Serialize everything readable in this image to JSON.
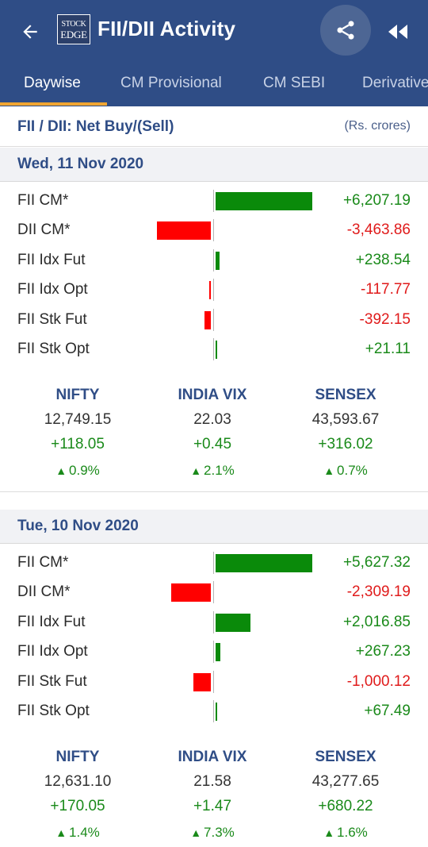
{
  "app": {
    "title": "FII/DII Activity",
    "logo_line1": "STOCK",
    "logo_line2": "EDGE",
    "header_color": "#2f4d86",
    "accent_color": "#f0a531"
  },
  "icons": {
    "back": "arrow-left-icon",
    "share": "share-icon",
    "rewind": "rewind-icon"
  },
  "tabs": [
    {
      "label": "Daywise",
      "active": true
    },
    {
      "label": "CM Provisional",
      "active": false
    },
    {
      "label": "CM SEBI",
      "active": false
    },
    {
      "label": "Derivatives",
      "active": false
    }
  ],
  "subheader": {
    "title": "FII / DII: Net Buy/(Sell)",
    "unit": "(Rs. crores)"
  },
  "days": [
    {
      "date": "Wed, 11 Nov 2020",
      "rows": [
        {
          "label": "FII CM*",
          "value": "+6,207.19",
          "amount": 6207.19
        },
        {
          "label": "DII CM*",
          "value": "-3,463.86",
          "amount": -3463.86
        },
        {
          "label": "FII Idx Fut",
          "value": "+238.54",
          "amount": 238.54
        },
        {
          "label": "FII Idx Opt",
          "value": "-117.77",
          "amount": -117.77
        },
        {
          "label": "FII Stk Fut",
          "value": "-392.15",
          "amount": -392.15
        },
        {
          "label": "FII Stk Opt",
          "value": "+21.11",
          "amount": 21.11
        }
      ],
      "indices": [
        {
          "name": "NIFTY",
          "value": "12,749.15",
          "change": "+118.05",
          "pct": "0.9%"
        },
        {
          "name": "INDIA VIX",
          "value": "22.03",
          "change": "+0.45",
          "pct": "2.1%"
        },
        {
          "name": "SENSEX",
          "value": "43,593.67",
          "change": "+316.02",
          "pct": "0.7%"
        }
      ]
    },
    {
      "date": "Tue, 10 Nov 2020",
      "rows": [
        {
          "label": "FII CM*",
          "value": "+5,627.32",
          "amount": 5627.32
        },
        {
          "label": "DII CM*",
          "value": "-2,309.19",
          "amount": -2309.19
        },
        {
          "label": "FII Idx Fut",
          "value": "+2,016.85",
          "amount": 2016.85
        },
        {
          "label": "FII Idx Opt",
          "value": "+267.23",
          "amount": 267.23
        },
        {
          "label": "FII Stk Fut",
          "value": "-1,000.12",
          "amount": -1000.12
        },
        {
          "label": "FII Stk Opt",
          "value": "+67.49",
          "amount": 67.49
        }
      ],
      "indices": [
        {
          "name": "NIFTY",
          "value": "12,631.10",
          "change": "+170.05",
          "pct": "1.4%"
        },
        {
          "name": "INDIA VIX",
          "value": "21.58",
          "change": "+1.47",
          "pct": "7.3%"
        },
        {
          "name": "SENSEX",
          "value": "43,277.65",
          "change": "+680.22",
          "pct": "1.6%"
        }
      ]
    }
  ],
  "colors": {
    "positive_bar": "#0a8a0a",
    "negative_bar": "#ff0000",
    "positive_text": "#1a8a1a",
    "negative_text": "#e01b1b"
  }
}
